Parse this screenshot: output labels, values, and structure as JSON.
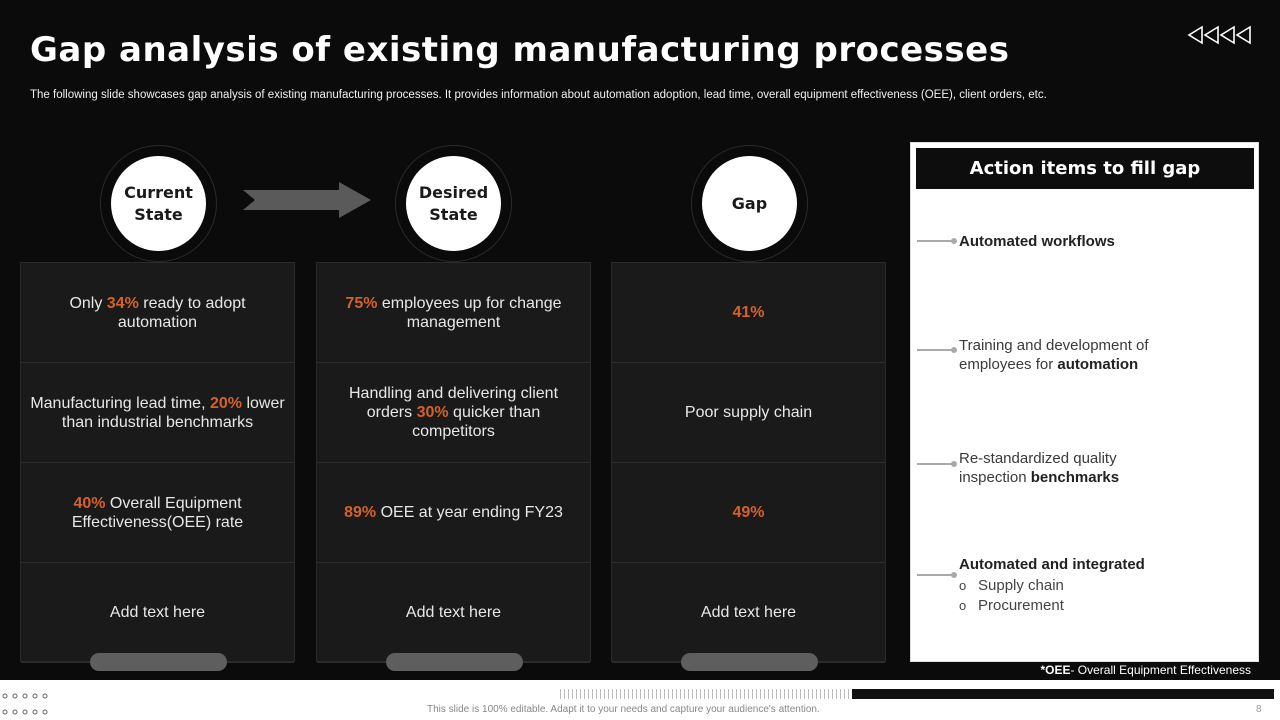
{
  "title": "Gap analysis of existing manufacturing processes",
  "subtitle": "The following slide showcases gap analysis of existing manufacturing processes. It provides information about automation adoption, lead time, overall equipment effectiveness (OEE), client orders, etc.",
  "colors": {
    "background": "#0b0b0b",
    "accent": "#d4622a",
    "card": "#1a1a1a",
    "panel": "#ffffff"
  },
  "icons": {
    "nav": "rewind-arrows-icon",
    "arrow": "right-arrow-icon"
  },
  "columns": [
    {
      "header_line1": "Current",
      "header_line2": "State",
      "rows": [
        {
          "pre": "Only ",
          "hl": "34%",
          "post": " ready to adopt automation"
        },
        {
          "pre": "Manufacturing lead time, ",
          "hl": "20%",
          "post": " lower than industrial benchmarks"
        },
        {
          "pre": "",
          "hl": "40%",
          "post": " Overall Equipment Effectiveness(OEE) rate"
        },
        {
          "pre": "Add text here",
          "hl": "",
          "post": ""
        }
      ]
    },
    {
      "header_line1": "Desired",
      "header_line2": "State",
      "rows": [
        {
          "pre": "",
          "hl": "75%",
          "post": " employees up for change management"
        },
        {
          "pre": "Handling and delivering client orders ",
          "hl": "30%",
          "post": " quicker than competitors"
        },
        {
          "pre": "",
          "hl": "89%",
          "post": " OEE at year ending FY23"
        },
        {
          "pre": "Add text here",
          "hl": "",
          "post": ""
        }
      ]
    },
    {
      "header_line1": "Gap",
      "header_line2": "",
      "rows": [
        {
          "pre": "",
          "hl": "41%",
          "post": ""
        },
        {
          "pre": "Poor supply chain",
          "hl": "",
          "post": ""
        },
        {
          "pre": "",
          "hl": "49%",
          "post": ""
        },
        {
          "pre": "Add text here",
          "hl": "",
          "post": ""
        }
      ]
    }
  ],
  "action_panel": {
    "header": "Action items to fill gap",
    "items": [
      {
        "pre": "",
        "bold": "Automated workflows",
        "post": ""
      },
      {
        "pre": "Training and development of employees for ",
        "bold": "automation",
        "post": ""
      },
      {
        "pre": "Re-standardized quality inspection ",
        "bold": "benchmarks",
        "post": ""
      },
      {
        "pre": "",
        "bold": "Automated and integrated",
        "post": "",
        "bullets": [
          "Supply chain",
          "Procurement"
        ]
      }
    ]
  },
  "footnote": {
    "bold": "*OEE",
    "text": "- Overall Equipment Effectiveness"
  },
  "footer": {
    "note": "This slide is 100% editable. Adapt it to your needs and capture your audience's attention.",
    "page": "8"
  }
}
